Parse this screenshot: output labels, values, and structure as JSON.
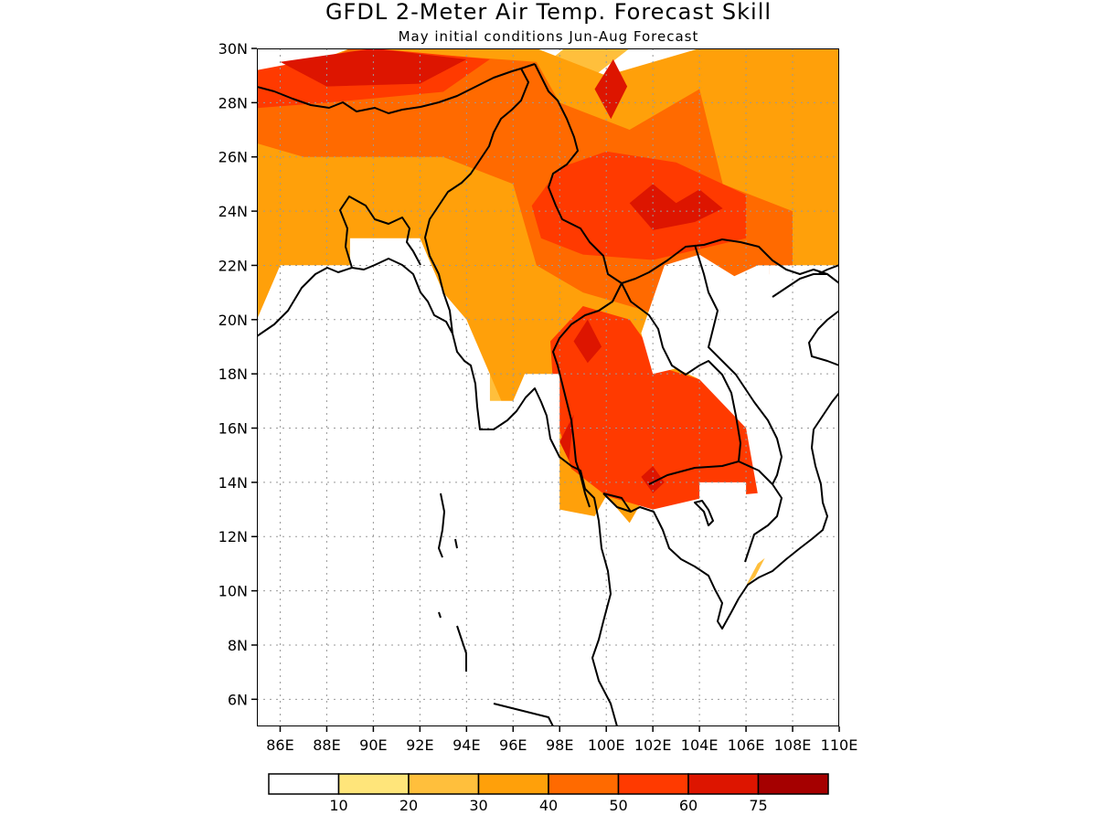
{
  "title": "GFDL 2-Meter Air Temp. Forecast Skill",
  "subtitle": "May initial conditions  Jun-Aug Forecast",
  "map": {
    "lon_range": [
      85,
      110
    ],
    "lat_range": [
      5,
      30
    ],
    "lon_ticks": [
      "86E",
      "88E",
      "90E",
      "92E",
      "94E",
      "96E",
      "98E",
      "100E",
      "102E",
      "104E",
      "106E",
      "108E",
      "110E"
    ],
    "lon_tick_values": [
      86,
      88,
      90,
      92,
      94,
      96,
      98,
      100,
      102,
      104,
      106,
      108,
      110
    ],
    "lat_ticks": [
      "6N",
      "8N",
      "10N",
      "12N",
      "14N",
      "16N",
      "18N",
      "20N",
      "22N",
      "24N",
      "26N",
      "28N",
      "30N"
    ],
    "lat_tick_values": [
      6,
      8,
      10,
      12,
      14,
      16,
      18,
      20,
      22,
      24,
      26,
      28,
      30
    ],
    "grid": "dotted"
  },
  "colorbar": {
    "labels": [
      "10",
      "20",
      "30",
      "40",
      "50",
      "60",
      "75"
    ],
    "colors": [
      "#ffffff",
      "#ffe57a",
      "#ffbf3c",
      "#ffa00a",
      "#ff6a00",
      "#ff3a00",
      "#dd1500",
      "#a50000"
    ]
  },
  "skill_regions": [
    {
      "level": 3,
      "coords": [
        [
          85,
          20
        ],
        [
          85,
          28.7
        ],
        [
          89,
          30
        ],
        [
          97,
          30
        ],
        [
          100,
          29
        ],
        [
          104,
          30
        ],
        [
          110,
          30
        ],
        [
          110,
          22
        ],
        [
          107,
          22
        ],
        [
          106,
          20
        ],
        [
          104,
          18
        ],
        [
          103,
          16
        ],
        [
          102,
          14
        ],
        [
          101,
          12.5
        ],
        [
          98,
          13
        ],
        [
          96.5,
          15
        ],
        [
          95,
          18
        ],
        [
          94,
          20
        ],
        [
          92,
          22
        ],
        [
          89,
          22
        ],
        [
          86,
          22
        ]
      ]
    },
    {
      "level": 4,
      "coords": [
        [
          85,
          28.2
        ],
        [
          89,
          30
        ],
        [
          97,
          29.5
        ],
        [
          98,
          28
        ],
        [
          101,
          27
        ],
        [
          104,
          28.5
        ],
        [
          105,
          25
        ],
        [
          108,
          24
        ],
        [
          108,
          22
        ],
        [
          105,
          21
        ],
        [
          103,
          20
        ],
        [
          99,
          21
        ],
        [
          97,
          22
        ],
        [
          96,
          25
        ],
        [
          93,
          26
        ],
        [
          90,
          26
        ],
        [
          87,
          26
        ],
        [
          85,
          26.5
        ]
      ]
    },
    {
      "level": 5,
      "coords": [
        [
          85,
          29.2
        ],
        [
          90,
          30
        ],
        [
          95,
          29.6
        ],
        [
          93,
          28.4
        ],
        [
          88,
          28
        ],
        [
          85,
          27.8
        ]
      ]
    },
    {
      "level": 5,
      "coords": [
        [
          96.8,
          24.2
        ],
        [
          98,
          25.6
        ],
        [
          100,
          26.2
        ],
        [
          103,
          25.8
        ],
        [
          106,
          24.6
        ],
        [
          106,
          23
        ],
        [
          102,
          22.2
        ],
        [
          99,
          22.4
        ],
        [
          97.2,
          23
        ]
      ]
    },
    {
      "level": 5,
      "coords": [
        [
          97.6,
          19.2
        ],
        [
          99,
          20.5
        ],
        [
          101,
          20
        ],
        [
          102.5,
          18.2
        ],
        [
          104,
          17.8
        ],
        [
          106,
          16
        ],
        [
          106.5,
          13.6
        ],
        [
          104,
          13.4
        ],
        [
          102,
          13
        ],
        [
          100,
          13.5
        ],
        [
          98.5,
          14.5
        ],
        [
          97.8,
          16.5
        ]
      ]
    },
    {
      "level": 6,
      "coords": [
        [
          86,
          29.5
        ],
        [
          90,
          30
        ],
        [
          94,
          29.6
        ],
        [
          92,
          28.7
        ],
        [
          88,
          28.6
        ]
      ]
    },
    {
      "level": 6,
      "coords": [
        [
          99.5,
          28.5
        ],
        [
          100.3,
          29.6
        ],
        [
          100.9,
          28.6
        ],
        [
          100.2,
          27.4
        ]
      ]
    },
    {
      "level": 6,
      "coords": [
        [
          101,
          24.3
        ],
        [
          102,
          25
        ],
        [
          103,
          24.3
        ],
        [
          104,
          24.8
        ],
        [
          105,
          24.1
        ],
        [
          103.8,
          23.6
        ],
        [
          102,
          23.3
        ]
      ]
    },
    {
      "level": 6,
      "coords": [
        [
          98.6,
          19.2
        ],
        [
          99.2,
          20
        ],
        [
          99.8,
          19
        ],
        [
          99.2,
          18.4
        ]
      ]
    },
    {
      "level": 6,
      "coords": [
        [
          101.5,
          14.2
        ],
        [
          102,
          14.6
        ],
        [
          102.5,
          14
        ],
        [
          102,
          13.6
        ]
      ]
    },
    {
      "level": 6,
      "coords": [
        [
          98,
          15.5
        ],
        [
          98.6,
          16.5
        ],
        [
          98.4,
          14.8
        ]
      ]
    },
    {
      "level": 2,
      "coords": [
        [
          94,
          22
        ],
        [
          96,
          23
        ],
        [
          97.5,
          22.4
        ],
        [
          97,
          20.5
        ],
        [
          96,
          19.5
        ],
        [
          95,
          20
        ]
      ]
    },
    {
      "level": 2,
      "coords": [
        [
          106,
          23.5
        ],
        [
          107.2,
          24.6
        ],
        [
          108.5,
          23.6
        ],
        [
          110,
          24.2
        ],
        [
          110,
          26
        ],
        [
          108,
          26.5
        ],
        [
          107,
          25.3
        ]
      ]
    },
    {
      "level": 2,
      "coords": [
        [
          96.5,
          28.8
        ],
        [
          98.2,
          30
        ],
        [
          101,
          30
        ],
        [
          98.6,
          28.4
        ]
      ]
    },
    {
      "level": 2,
      "coords": [
        [
          104.5,
          12.2
        ],
        [
          105.5,
          12.8
        ],
        [
          106.2,
          12.2
        ],
        [
          106.8,
          11.2
        ],
        [
          106.2,
          10.2
        ],
        [
          105,
          10.6
        ]
      ]
    },
    {
      "level": 1,
      "coords": [
        [
          95.4,
          20
        ],
        [
          96,
          21.2
        ],
        [
          97.6,
          20.8
        ],
        [
          98.2,
          19.5
        ],
        [
          97,
          19.2
        ]
      ]
    },
    {
      "level": 1,
      "coords": [
        [
          102.6,
          22
        ],
        [
          104.5,
          21.6
        ],
        [
          106,
          20.2
        ],
        [
          104.8,
          18.6
        ],
        [
          103.6,
          19.6
        ],
        [
          102.8,
          20.6
        ]
      ]
    },
    {
      "level": 1,
      "coords": [
        [
          104.2,
          30
        ],
        [
          105.2,
          28.8
        ],
        [
          106.5,
          29.4
        ],
        [
          108,
          28.6
        ],
        [
          109.5,
          29.6
        ],
        [
          110,
          30
        ]
      ]
    },
    {
      "level": 1,
      "coords": [
        [
          107.8,
          25.2
        ],
        [
          108.5,
          24.4
        ],
        [
          110,
          25
        ],
        [
          110,
          26.4
        ],
        [
          108.6,
          26.6
        ]
      ]
    },
    {
      "level": 1,
      "coords": [
        [
          93.2,
          22.6
        ],
        [
          94,
          24
        ],
        [
          94.8,
          23.2
        ],
        [
          94.6,
          22.4
        ]
      ]
    },
    {
      "level": 2,
      "coords": [
        [
          95,
          17
        ],
        [
          95,
          18
        ],
        [
          97,
          18
        ],
        [
          97.5,
          17.2
        ],
        [
          96.6,
          16.6
        ]
      ]
    },
    {
      "level": 0,
      "coords": [
        [
          90,
          26.4
        ],
        [
          90.3,
          27.2
        ],
        [
          92.4,
          27.4
        ],
        [
          92.6,
          26.2
        ],
        [
          91.2,
          25.8
        ]
      ]
    },
    {
      "level": 0,
      "coords": [
        [
          94.5,
          27.7
        ],
        [
          95.8,
          28.3
        ],
        [
          96.6,
          27.2
        ],
        [
          95.5,
          26.8
        ]
      ]
    },
    {
      "level": 0,
      "coords": [
        [
          97.6,
          27
        ],
        [
          99.4,
          27.8
        ],
        [
          100.2,
          26.4
        ],
        [
          99,
          25.7
        ],
        [
          97.9,
          26
        ]
      ]
    },
    {
      "level": 0,
      "coords": [
        [
          104.8,
          28.4
        ],
        [
          106.8,
          29.2
        ],
        [
          107.2,
          28
        ],
        [
          105.6,
          27.2
        ]
      ]
    },
    {
      "level": 0,
      "coords": [
        [
          107,
          27
        ],
        [
          108.4,
          27.4
        ],
        [
          109.8,
          27
        ],
        [
          108.6,
          26
        ]
      ]
    },
    {
      "level": 0,
      "coords": [
        [
          106.2,
          25.8
        ],
        [
          106.6,
          26.2
        ],
        [
          107,
          25.5
        ],
        [
          106.5,
          25.1
        ]
      ]
    },
    {
      "level": 0,
      "coords": [
        [
          95.7,
          24
        ],
        [
          96,
          24.4
        ],
        [
          96.3,
          24
        ],
        [
          96,
          23.6
        ]
      ]
    },
    {
      "level": 0,
      "coords": [
        [
          95.8,
          20
        ],
        [
          96.8,
          21
        ],
        [
          97.8,
          20.4
        ],
        [
          97,
          19.4
        ]
      ]
    },
    {
      "level": 0,
      "coords": [
        [
          85,
          22
        ],
        [
          86,
          22
        ],
        [
          86,
          20.1
        ],
        [
          85,
          19.5
        ]
      ]
    }
  ],
  "mask_regions": [
    {
      "coords": [
        [
          85,
          5
        ],
        [
          85,
          19.5
        ],
        [
          86,
          22
        ],
        [
          89,
          22
        ],
        [
          89,
          23
        ],
        [
          92,
          23
        ],
        [
          92.5,
          22
        ],
        [
          93.5,
          20
        ],
        [
          94,
          19
        ],
        [
          95,
          18
        ],
        [
          95,
          17
        ],
        [
          96,
          17
        ],
        [
          96.5,
          18
        ],
        [
          98,
          18
        ],
        [
          98,
          13
        ],
        [
          99,
          12
        ],
        [
          100,
          13.5
        ],
        [
          101,
          12.5
        ],
        [
          103.5,
          13
        ],
        [
          104,
          13.4
        ],
        [
          104,
          14
        ],
        [
          106,
          14
        ],
        [
          106,
          13.4
        ],
        [
          107,
          13
        ],
        [
          108,
          13
        ],
        [
          108,
          12
        ],
        [
          106.5,
          11
        ],
        [
          106,
          10.2
        ],
        [
          105,
          9.8
        ],
        [
          104,
          10.5
        ],
        [
          103,
          10
        ],
        [
          101,
          8
        ],
        [
          99,
          6
        ],
        [
          98,
          5
        ]
      ]
    },
    {
      "coords": [
        [
          98,
          5
        ],
        [
          110,
          5
        ],
        [
          110,
          11
        ],
        [
          108,
          11.6
        ],
        [
          107,
          11
        ],
        [
          106,
          10.2
        ],
        [
          104,
          10.5
        ],
        [
          102,
          9
        ],
        [
          100,
          7.5
        ],
        [
          99,
          6
        ]
      ]
    },
    {
      "coords": [
        [
          102.5,
          22
        ],
        [
          104,
          22.4
        ],
        [
          105.5,
          21.6
        ],
        [
          106.5,
          22
        ],
        [
          107,
          22
        ],
        [
          107,
          21
        ],
        [
          107.5,
          20
        ],
        [
          106.5,
          19
        ],
        [
          106,
          18
        ],
        [
          105,
          17.5
        ],
        [
          104,
          17.8
        ],
        [
          103,
          18.2
        ],
        [
          102,
          18
        ],
        [
          101.5,
          19.5
        ]
      ]
    },
    {
      "coords": [
        [
          107,
          22
        ],
        [
          110,
          22
        ],
        [
          110,
          13
        ],
        [
          108,
          13
        ],
        [
          107.5,
          15
        ],
        [
          107,
          16
        ],
        [
          106,
          18
        ],
        [
          106.5,
          19
        ],
        [
          107.5,
          20
        ],
        [
          107,
          21
        ]
      ]
    }
  ]
}
